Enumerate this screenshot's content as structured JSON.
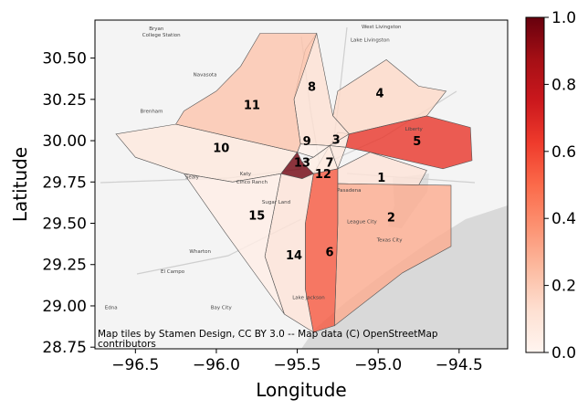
{
  "chart_data": {
    "type": "choropleth",
    "xlabel": "Longitude",
    "ylabel": "Latitude",
    "xlim": [
      -96.75,
      -94.2
    ],
    "ylim": [
      28.74,
      30.73
    ],
    "xticks": [
      -96.5,
      -96.0,
      -95.5,
      -95.0,
      -94.5
    ],
    "xtick_labels": [
      "−96.5",
      "−96.0",
      "−95.5",
      "−95.0",
      "−94.5"
    ],
    "yticks": [
      28.75,
      29.0,
      29.25,
      29.5,
      29.75,
      30.0,
      30.25,
      30.5
    ],
    "ytick_labels": [
      "28.75",
      "29.00",
      "29.25",
      "29.50",
      "29.75",
      "30.00",
      "30.25",
      "30.50"
    ],
    "colorbar": {
      "range": [
        0,
        1
      ],
      "ticks": [
        0.0,
        0.2,
        0.4,
        0.6,
        0.8,
        1.0
      ],
      "tick_labels": [
        "0.0",
        "0.2",
        "0.4",
        "0.6",
        "0.8",
        "1.0"
      ],
      "colormap": "Reds"
    },
    "attribution": "Map tiles by Stamen Design, CC BY 3.0 -- Map data (C) OpenStreetMap contributors",
    "regions": [
      {
        "label": "1",
        "value": 0.1,
        "lon": -94.98,
        "lat": 29.78,
        "poly": [
          [
            -95.25,
            29.83
          ],
          [
            -95.05,
            29.93
          ],
          [
            -94.7,
            29.82
          ],
          [
            -94.75,
            29.73
          ],
          [
            -95.25,
            29.74
          ]
        ]
      },
      {
        "label": "2",
        "value": 0.3,
        "lon": -94.92,
        "lat": 29.54,
        "poly": [
          [
            -95.25,
            29.74
          ],
          [
            -94.55,
            29.73
          ],
          [
            -94.55,
            29.36
          ],
          [
            -94.85,
            29.2
          ],
          [
            -95.27,
            28.88
          ],
          [
            -95.25,
            29.5
          ]
        ]
      },
      {
        "label": "3",
        "value": 0.07,
        "lon": -95.26,
        "lat": 30.01,
        "poly": [
          [
            -95.3,
            29.97
          ],
          [
            -95.25,
            30.05
          ],
          [
            -95.18,
            30.04
          ],
          [
            -95.2,
            29.96
          ]
        ]
      },
      {
        "label": "4",
        "value": 0.15,
        "lon": -94.99,
        "lat": 30.29,
        "poly": [
          [
            -95.18,
            30.04
          ],
          [
            -95.28,
            30.15
          ],
          [
            -95.25,
            30.3
          ],
          [
            -94.95,
            30.49
          ],
          [
            -94.75,
            30.33
          ],
          [
            -94.58,
            30.3
          ],
          [
            -94.7,
            30.15
          ],
          [
            -95.18,
            30.04
          ]
        ]
      },
      {
        "label": "5",
        "value": 0.65,
        "lon": -94.76,
        "lat": 30.0,
        "poly": [
          [
            -95.18,
            30.04
          ],
          [
            -94.7,
            30.15
          ],
          [
            -94.43,
            30.08
          ],
          [
            -94.42,
            29.88
          ],
          [
            -94.6,
            29.83
          ],
          [
            -95.05,
            29.93
          ],
          [
            -95.2,
            29.96
          ]
        ]
      },
      {
        "label": "6",
        "value": 0.55,
        "lon": -95.3,
        "lat": 29.33,
        "poly": [
          [
            -95.4,
            29.8
          ],
          [
            -95.25,
            29.83
          ],
          [
            -95.25,
            29.5
          ],
          [
            -95.27,
            28.88
          ],
          [
            -95.4,
            28.84
          ],
          [
            -95.45,
            29.1
          ],
          [
            -95.45,
            29.5
          ]
        ]
      },
      {
        "label": "7",
        "value": 0.08,
        "lon": -95.3,
        "lat": 29.87,
        "poly": [
          [
            -95.3,
            29.97
          ],
          [
            -95.2,
            29.96
          ],
          [
            -95.25,
            29.83
          ],
          [
            -95.4,
            29.8
          ]
        ]
      },
      {
        "label": "8",
        "value": 0.12,
        "lon": -95.41,
        "lat": 30.33,
        "poly": [
          [
            -95.38,
            30.65
          ],
          [
            -95.28,
            30.15
          ],
          [
            -95.18,
            30.04
          ],
          [
            -95.3,
            29.97
          ],
          [
            -95.48,
            29.98
          ],
          [
            -95.52,
            30.25
          ],
          [
            -95.45,
            30.55
          ]
        ]
      },
      {
        "label": "9",
        "value": 0.03,
        "lon": -95.44,
        "lat": 30.0,
        "poly": [
          [
            -95.48,
            29.98
          ],
          [
            -95.3,
            29.97
          ],
          [
            -95.4,
            29.9
          ],
          [
            -95.5,
            29.93
          ]
        ]
      },
      {
        "label": "10",
        "value": 0.08,
        "lon": -95.97,
        "lat": 29.96,
        "poly": [
          [
            -96.62,
            30.04
          ],
          [
            -96.25,
            30.1
          ],
          [
            -95.5,
            29.93
          ],
          [
            -95.6,
            29.8
          ],
          [
            -95.9,
            29.75
          ],
          [
            -96.2,
            29.8
          ],
          [
            -96.5,
            29.9
          ]
        ]
      },
      {
        "label": "11",
        "value": 0.22,
        "lon": -95.78,
        "lat": 30.22,
        "poly": [
          [
            -96.2,
            30.18
          ],
          [
            -96.0,
            30.3
          ],
          [
            -95.85,
            30.45
          ],
          [
            -95.73,
            30.65
          ],
          [
            -95.38,
            30.65
          ],
          [
            -95.52,
            30.25
          ],
          [
            -95.48,
            29.98
          ],
          [
            -95.5,
            29.93
          ],
          [
            -96.25,
            30.1
          ]
        ]
      },
      {
        "label": "12",
        "value": 0.05,
        "lon": -95.34,
        "lat": 29.8,
        "poly": [
          [
            -95.4,
            29.9
          ],
          [
            -95.3,
            29.97
          ],
          [
            -95.25,
            29.83
          ],
          [
            -95.4,
            29.8
          ],
          [
            -95.47,
            29.87
          ]
        ]
      },
      {
        "label": "13",
        "value": 0.98,
        "lon": -95.47,
        "lat": 29.87,
        "poly": [
          [
            -95.6,
            29.8
          ],
          [
            -95.47,
            29.77
          ],
          [
            -95.4,
            29.8
          ],
          [
            -95.47,
            29.87
          ],
          [
            -95.5,
            29.93
          ]
        ]
      },
      {
        "label": "14",
        "value": 0.1,
        "lon": -95.52,
        "lat": 29.31,
        "poly": [
          [
            -95.4,
            29.8
          ],
          [
            -95.45,
            29.5
          ],
          [
            -95.45,
            29.1
          ],
          [
            -95.4,
            28.84
          ],
          [
            -95.58,
            28.95
          ],
          [
            -95.7,
            29.3
          ],
          [
            -95.6,
            29.8
          ],
          [
            -95.47,
            29.77
          ]
        ]
      },
      {
        "label": "15",
        "value": 0.04,
        "lon": -95.75,
        "lat": 29.55,
        "poly": [
          [
            -95.9,
            29.75
          ],
          [
            -95.6,
            29.8
          ],
          [
            -95.7,
            29.3
          ],
          [
            -95.58,
            28.95
          ],
          [
            -95.95,
            29.45
          ],
          [
            -96.2,
            29.8
          ]
        ]
      }
    ],
    "place_names": [
      {
        "text": "Bryan",
        "lon": -96.37,
        "lat": 30.67
      },
      {
        "text": "College Station",
        "lon": -96.34,
        "lat": 30.63
      },
      {
        "text": "West Livingston",
        "lon": -94.98,
        "lat": 30.68
      },
      {
        "text": "Lake Livingston",
        "lon": -95.05,
        "lat": 30.6
      },
      {
        "text": "Navasota",
        "lon": -96.07,
        "lat": 30.39
      },
      {
        "text": "Brenham",
        "lon": -96.4,
        "lat": 30.17
      },
      {
        "text": "Liberty",
        "lon": -94.78,
        "lat": 30.06
      },
      {
        "text": "Pasadena",
        "lon": -95.18,
        "lat": 29.69
      },
      {
        "text": "League City",
        "lon": -95.1,
        "lat": 29.5
      },
      {
        "text": "Texas City",
        "lon": -94.93,
        "lat": 29.39
      },
      {
        "text": "Wharton",
        "lon": -96.1,
        "lat": 29.32
      },
      {
        "text": "El Campo",
        "lon": -96.27,
        "lat": 29.2
      },
      {
        "text": "Edna",
        "lon": -96.65,
        "lat": 28.98
      },
      {
        "text": "Bay City",
        "lon": -95.97,
        "lat": 28.98
      },
      {
        "text": "Lake Jackson",
        "lon": -95.43,
        "lat": 29.04
      },
      {
        "text": "Katy",
        "lon": -95.82,
        "lat": 29.79
      },
      {
        "text": "Cinco Ranch",
        "lon": -95.78,
        "lat": 29.74
      },
      {
        "text": "Sealy",
        "lon": -96.15,
        "lat": 29.77
      },
      {
        "text": "Sugar Land",
        "lon": -95.63,
        "lat": 29.62
      }
    ]
  }
}
